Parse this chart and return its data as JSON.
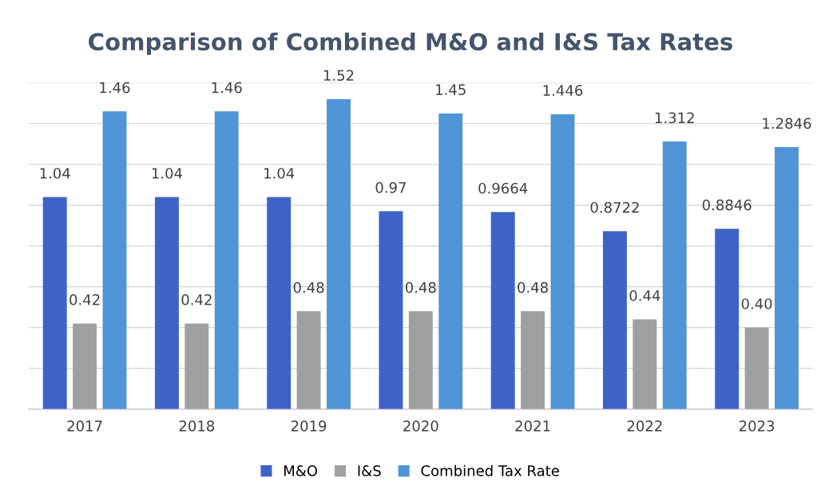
{
  "chart_data": {
    "type": "bar",
    "title": "Comparison of Combined M&O and I&S Tax Rates",
    "categories": [
      "2017",
      "2018",
      "2019",
      "2020",
      "2021",
      "2022",
      "2023"
    ],
    "series": [
      {
        "name": "M&O",
        "color": "#3d63c6",
        "values": [
          1.04,
          1.04,
          1.04,
          0.97,
          0.9664,
          0.8722,
          0.8846
        ],
        "value_labels": [
          "1.04",
          "1.04",
          "1.04",
          "0.97",
          "0.9664",
          "0.8722",
          "0.8846"
        ]
      },
      {
        "name": "I&S",
        "color": "#a0a0a0",
        "values": [
          0.42,
          0.42,
          0.48,
          0.48,
          0.48,
          0.44,
          0.4
        ],
        "value_labels": [
          "0.42",
          "0.42",
          "0.48",
          "0.48",
          "0.48",
          "0.44",
          "0.40"
        ]
      },
      {
        "name": "Combined Tax Rate",
        "color": "#4f95d6",
        "values": [
          1.46,
          1.46,
          1.52,
          1.45,
          1.446,
          1.312,
          1.2846
        ],
        "value_labels": [
          "1.46",
          "1.46",
          "1.52",
          "1.45",
          "1.446",
          "1.312",
          "1.2846"
        ]
      }
    ],
    "ylim": [
      0,
      1.6
    ],
    "yticks": [
      {
        "value": 0,
        "label": null
      },
      {
        "value": 0.2,
        "label": null
      },
      {
        "value": 0.4,
        "label": null
      },
      {
        "value": 0.6,
        "label": null
      },
      {
        "value": 0.8,
        "label": null
      },
      {
        "value": 1.0,
        "label": null
      },
      {
        "value": 1.2,
        "label": null
      },
      {
        "value": 1.4,
        "label": null
      },
      {
        "value": 1.6,
        "label": null
      }
    ],
    "grid": "y",
    "legend": "bottom",
    "tick_labels": "x"
  }
}
